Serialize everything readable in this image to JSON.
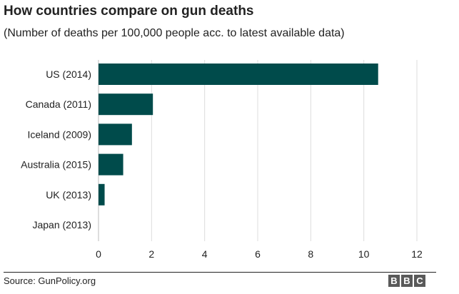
{
  "title": "How countries compare on gun deaths",
  "subtitle": "(Number of deaths per 100,000 people acc. to latest available data)",
  "source": "Source: GunPolicy.org",
  "logo": {
    "letters": [
      "B",
      "B",
      "C"
    ]
  },
  "colors": {
    "bar": "#004b4b",
    "grid": "#dcdcdc",
    "text": "#222222",
    "logo_block": "#5a5a5a"
  },
  "chart_data": {
    "type": "bar",
    "orientation": "horizontal",
    "title": "How countries compare on gun deaths",
    "subtitle": "(Number of deaths per 100,000 people acc. to latest available data)",
    "xlabel": "",
    "ylabel": "",
    "categories": [
      "US (2014)",
      "Canada (2011)",
      "Iceland (2009)",
      "Australia (2015)",
      "UK (2013)",
      "Japan (2013)"
    ],
    "values": [
      10.54,
      2.05,
      1.26,
      0.93,
      0.23,
      0.0
    ],
    "xlim": [
      0,
      12
    ],
    "xticks": [
      0,
      2,
      4,
      6,
      8,
      10,
      12
    ],
    "grid": "vertical",
    "legend": "none"
  }
}
